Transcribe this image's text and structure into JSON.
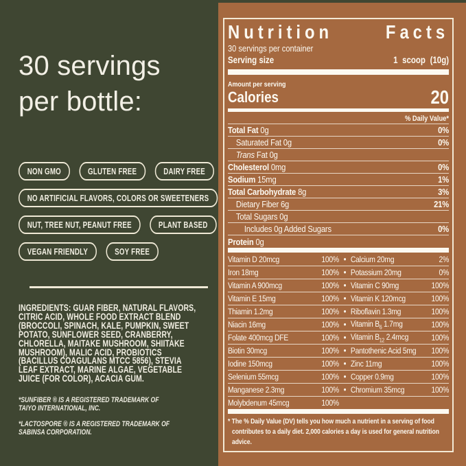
{
  "left_panel": {
    "heading": [
      "30 servings",
      "per bottle:"
    ],
    "badge_rows": [
      [
        "NON GMO",
        "GLUTEN FREE",
        "DAIRY FREE"
      ],
      [
        "NO ARTIFICIAL FLAVORS, COLORS OR SWEETENERS"
      ],
      [
        "NUT, TREE NUT, PEANUT FREE",
        "PLANT BASED"
      ],
      [
        "VEGAN FRIENDLY",
        "SOY FREE"
      ]
    ],
    "ingredients": "INGREDIENTS: GUAR FIBER, NATURAL FLAVORS, CITRIC ACID, WHOLE FOOD EXTRACT BLEND (BROCCOLI, SPINACH, KALE, PUMPKIN, SWEET POTATO, SUNFLOWER SEED, CRANBERRY, CHLORELLA, MAITAKE MUSHROOM, SHIITAKE MUSHROOM), MALIC ACID, PROBIOTICS (BACILLUS COAGULANS MTCC 5856), STEVIA LEAF EXTRACT, MARINE ALGAE, VEGETABLE JUICE (FOR COLOR), ACACIA GUM.",
    "trademarks": [
      "*SUNFIBER ® IS A REGISTERED TRADEMARK OF TAIYO INTERNATIONAL, INC.",
      "*LACTOSPORE ® IS A REGISTERED TRADEMARK OF SABINSA CORPORATION."
    ]
  },
  "nutrition_label": {
    "title": "Nutrition Facts",
    "servings_per_container": "30 servings per container",
    "serving_size_label": "Serving size",
    "serving_size_value": "1 scoop (10g)",
    "amount_per_serving": "Amount per serving",
    "calories_label": "Calories",
    "calories_value": "20",
    "daily_value_header": "% Daily Value*",
    "nutrient_rows": [
      {
        "bold": "Total Fat",
        "text": " 0g",
        "italic": "",
        "dv": "0%",
        "indent": 0
      },
      {
        "bold": "",
        "text": "Saturated Fat 0g",
        "italic": "",
        "dv": "0%",
        "indent": 1
      },
      {
        "bold": "",
        "text": " Fat 0g",
        "italic": "Trans",
        "dv": "",
        "indent": 1
      },
      {
        "bold": "Cholesterol",
        "text": " 0mg",
        "italic": "",
        "dv": "0%",
        "indent": 0
      },
      {
        "bold": "Sodium",
        "text": " 15mg",
        "italic": "",
        "dv": "1%",
        "indent": 0
      },
      {
        "bold": "Total Carbohydrate",
        "text": " 8g",
        "italic": "",
        "dv": "3%",
        "indent": 0
      },
      {
        "bold": "",
        "text": "Dietary Fiber 6g",
        "italic": "",
        "dv": "21%",
        "indent": 1
      },
      {
        "bold": "",
        "text": "Total Sugars 0g",
        "italic": "",
        "dv": "",
        "indent": 1
      },
      {
        "bold": "",
        "text": "Includes 0g Added Sugars",
        "italic": "",
        "dv": "0%",
        "indent": 2
      },
      {
        "bold": "Protein",
        "text": " 0g",
        "italic": "",
        "dv": "",
        "indent": 0
      }
    ],
    "micronutrient_rows": [
      {
        "left": "Vitamin D 20mcg",
        "left_dv": "100%",
        "right": "Calcium 20mg",
        "right_dv": "2%"
      },
      {
        "left": "Iron 18mg",
        "left_dv": "100%",
        "right": "Potassium 20mg",
        "right_dv": "0%"
      },
      {
        "left": "Vitamin A 900mcg",
        "left_dv": "100%",
        "right": "Vitamin C 90mg",
        "right_dv": "100%"
      },
      {
        "left": "Vitamin E 15mg",
        "left_dv": "100%",
        "right": "Vitamin K 120mcg",
        "right_dv": "100%"
      },
      {
        "left": "Thiamin 1.2mg",
        "left_dv": "100%",
        "right": "Riboflavin 1.3mg",
        "right_dv": "100%"
      },
      {
        "left": "Niacin 16mg",
        "left_dv": "100%",
        "right": "Vitamin B6 1.7mg",
        "right_dv": "100%"
      },
      {
        "left": "Folate 400mcg DFE",
        "left_dv": "100%",
        "right": "Vitamin B12 2.4mcg",
        "right_dv": "100%"
      },
      {
        "left": "Biotin 30mcg",
        "left_dv": "100%",
        "right": "Pantothenic Acid 5mg",
        "right_dv": "100%"
      },
      {
        "left": "Iodine 150mcg",
        "left_dv": "100%",
        "right": "Zinc 11mg",
        "right_dv": "100%"
      },
      {
        "left": "Selenium 55mcg",
        "left_dv": "100%",
        "right": "Copper 0.9mg",
        "right_dv": "100%"
      },
      {
        "left": "Manganese 2.3mg",
        "left_dv": "100%",
        "right": "Chromium 35mcg",
        "right_dv": "100%"
      },
      {
        "left": "Molybdenum 45mcg",
        "left_dv": "100%",
        "right": "",
        "right_dv": ""
      }
    ],
    "footnote": "* The % Daily Value (DV) tells you how much a nutrient in a serving of food contributes to a daily diet. 2,000 calories a day is used for general nutrition advice."
  },
  "colors": {
    "background_olive": "#3f4632",
    "panel_brown": "#a56940",
    "cream_border": "#f3ead6",
    "label_text": "#fcf9f1"
  }
}
